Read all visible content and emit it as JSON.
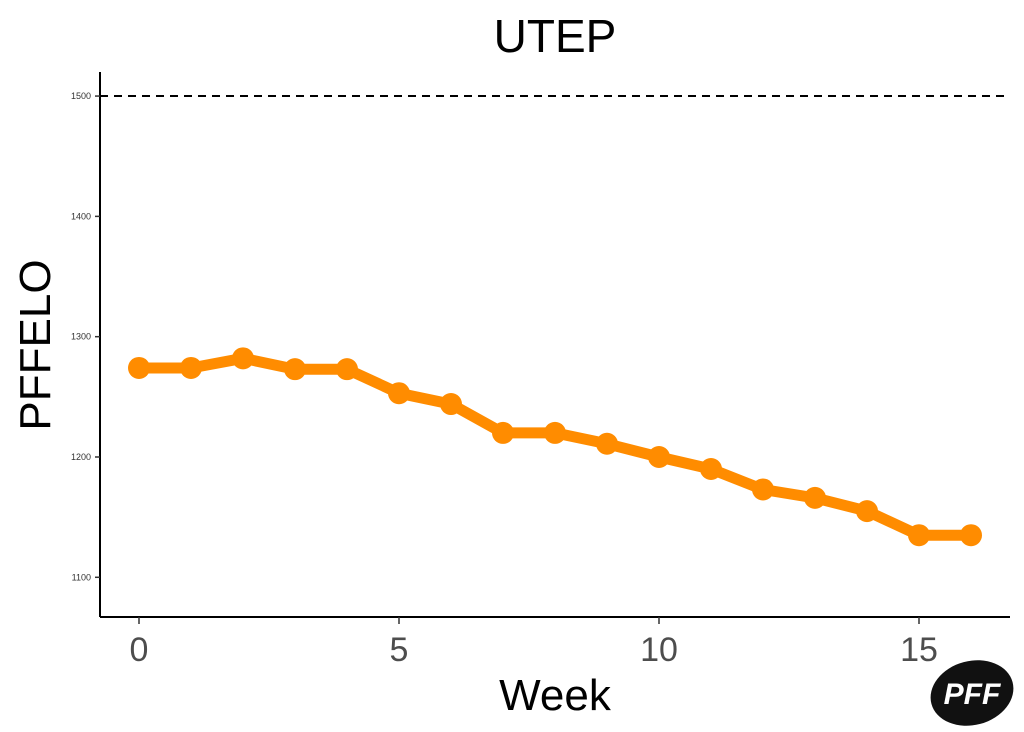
{
  "chart_data": {
    "type": "line",
    "title": "UTEP",
    "xlabel": "Week",
    "ylabel": "PFFELO",
    "x": [
      0,
      1,
      2,
      3,
      4,
      5,
      6,
      7,
      8,
      9,
      10,
      11,
      12,
      13,
      14,
      15,
      16
    ],
    "series": [
      {
        "values": [
          1274,
          1274,
          1282,
          1273,
          1273,
          1253,
          1244,
          1220,
          1220,
          1211,
          1200,
          1190,
          1173,
          1166,
          1155,
          1135,
          1135
        ],
        "color": "#ff8c00"
      }
    ],
    "reference_line": {
      "y": 1500,
      "style": "dashed",
      "color": "#000000"
    },
    "xticks": [
      0,
      5,
      10,
      15
    ],
    "yticks": [
      1100,
      1200,
      1300,
      1400,
      1500
    ],
    "xlim": [
      -0.75,
      16.75
    ],
    "ylim": [
      1067,
      1520
    ],
    "grid": false
  },
  "logo": {
    "text": "PFF",
    "icon": "pff-logo-icon"
  }
}
